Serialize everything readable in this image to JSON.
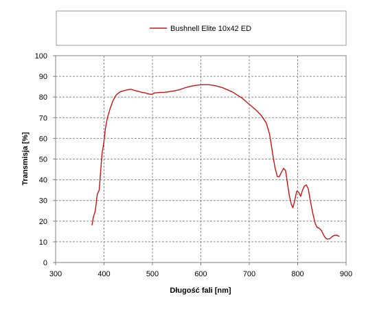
{
  "chart_data": {
    "type": "line",
    "xlabel": "Długość fali [nm]",
    "ylabel": "Transmisja [%]",
    "xlim": [
      300,
      900
    ],
    "ylim": [
      0,
      100
    ],
    "x_ticks": [
      300,
      400,
      500,
      600,
      700,
      800,
      900
    ],
    "y_ticks": [
      0,
      10,
      20,
      30,
      40,
      50,
      60,
      70,
      80,
      90,
      100
    ],
    "grid": true,
    "legend_position": "top",
    "series": [
      {
        "name": "Bushnell Elite 10x42 ED",
        "color": "#cc1010",
        "points": [
          [
            375,
            18
          ],
          [
            378,
            22
          ],
          [
            382,
            25
          ],
          [
            386,
            33
          ],
          [
            390,
            35
          ],
          [
            393,
            44
          ],
          [
            396,
            53
          ],
          [
            399,
            57
          ],
          [
            403,
            65
          ],
          [
            407,
            70
          ],
          [
            412,
            74
          ],
          [
            418,
            78
          ],
          [
            425,
            81
          ],
          [
            433,
            82.5
          ],
          [
            440,
            83
          ],
          [
            448,
            83.5
          ],
          [
            455,
            83.8
          ],
          [
            462,
            83.3
          ],
          [
            470,
            82.8
          ],
          [
            478,
            82.3
          ],
          [
            485,
            82
          ],
          [
            492,
            81.5
          ],
          [
            498,
            81.3
          ],
          [
            505,
            82
          ],
          [
            515,
            82.2
          ],
          [
            525,
            82.3
          ],
          [
            535,
            82.6
          ],
          [
            545,
            83
          ],
          [
            555,
            83.5
          ],
          [
            565,
            84.3
          ],
          [
            575,
            85
          ],
          [
            585,
            85.5
          ],
          [
            595,
            85.8
          ],
          [
            605,
            86
          ],
          [
            615,
            86
          ],
          [
            625,
            85.7
          ],
          [
            635,
            85.2
          ],
          [
            645,
            84.5
          ],
          [
            655,
            83.5
          ],
          [
            665,
            82.5
          ],
          [
            675,
            81
          ],
          [
            685,
            79.5
          ],
          [
            695,
            77.5
          ],
          [
            705,
            75.5
          ],
          [
            715,
            73.5
          ],
          [
            725,
            71
          ],
          [
            735,
            67.5
          ],
          [
            742,
            62
          ],
          [
            748,
            53
          ],
          [
            753,
            46
          ],
          [
            758,
            41.5
          ],
          [
            762,
            41.5
          ],
          [
            766,
            43.5
          ],
          [
            771,
            45.5
          ],
          [
            775,
            44.5
          ],
          [
            779,
            38
          ],
          [
            783,
            32
          ],
          [
            787,
            28
          ],
          [
            790,
            26.5
          ],
          [
            794,
            30
          ],
          [
            798,
            34.5
          ],
          [
            802,
            34
          ],
          [
            806,
            32
          ],
          [
            810,
            35
          ],
          [
            814,
            37
          ],
          [
            818,
            37.5
          ],
          [
            822,
            35.5
          ],
          [
            826,
            30
          ],
          [
            831,
            24
          ],
          [
            836,
            19
          ],
          [
            840,
            17
          ],
          [
            845,
            16.5
          ],
          [
            849,
            15.5
          ],
          [
            853,
            13.5
          ],
          [
            857,
            12
          ],
          [
            861,
            11.3
          ],
          [
            866,
            11.5
          ],
          [
            871,
            12.5
          ],
          [
            876,
            13.2
          ],
          [
            881,
            13.2
          ],
          [
            886,
            12.6
          ]
        ]
      }
    ]
  }
}
